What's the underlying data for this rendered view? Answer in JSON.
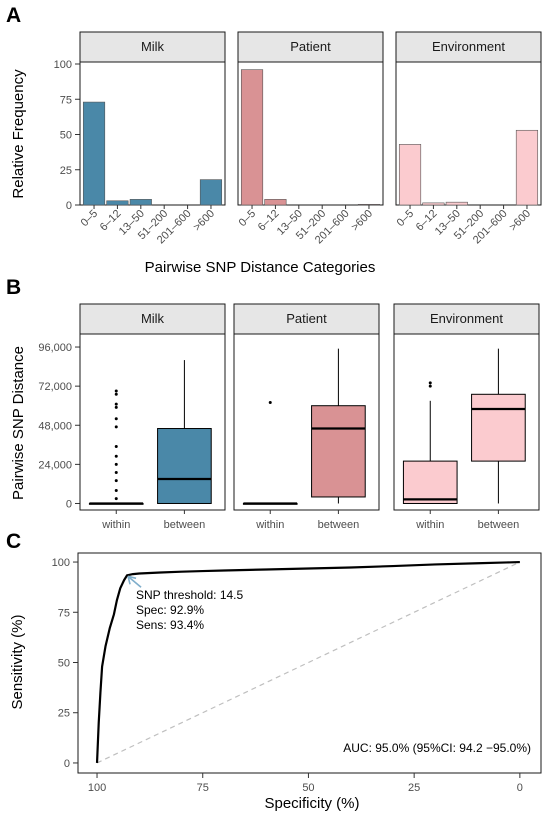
{
  "panels": {
    "A": "A",
    "B": "B",
    "C": "C"
  },
  "chart_data": [
    {
      "type": "bar",
      "panel": "A",
      "facets": [
        "Milk",
        "Patient",
        "Environment"
      ],
      "categories": [
        "0–5",
        "6–12",
        "13–50",
        "51–200",
        "201–600",
        ">600"
      ],
      "series": [
        {
          "name": "Milk",
          "values": [
            73,
            3,
            4,
            0,
            0,
            18
          ],
          "color": "#4a88a8"
        },
        {
          "name": "Patient",
          "values": [
            96,
            4,
            0,
            0,
            0,
            0.5
          ],
          "color": "#d99294"
        },
        {
          "name": "Environment",
          "values": [
            43,
            1.5,
            2,
            0,
            0,
            53
          ],
          "color": "#fbcbcf"
        }
      ],
      "xlabel": "Pairwise SNP Distance Categories",
      "ylabel": "Relative Frequency",
      "ylim": [
        0,
        100
      ],
      "yticks": [
        0,
        25,
        50,
        75,
        100
      ],
      "ytick_labels": [
        "0",
        "25",
        "50",
        "75",
        "100"
      ],
      "grid": false
    },
    {
      "type": "box",
      "panel": "B",
      "facets": [
        "Milk",
        "Patient",
        "Environment"
      ],
      "categories": [
        "within",
        "between"
      ],
      "series": [
        {
          "name": "Milk",
          "color": "#4a88a8",
          "boxes": [
            {
              "category": "within",
              "min": 0,
              "q1": 0,
              "median": 0,
              "q3": 0,
              "max": 0,
              "outliers": [
                69000,
                67000,
                61000,
                59000,
                52000,
                47000,
                35000,
                29000,
                24000,
                19000,
                14000,
                8000,
                3000
              ]
            },
            {
              "category": "between",
              "min": 0,
              "q1": 0,
              "median": 15000,
              "q3": 46000,
              "max": 88000,
              "outliers": []
            }
          ]
        },
        {
          "name": "Patient",
          "color": "#d99294",
          "boxes": [
            {
              "category": "within",
              "min": 0,
              "q1": 0,
              "median": 0,
              "q3": 0,
              "max": 0,
              "outliers": [
                62000
              ]
            },
            {
              "category": "between",
              "min": 0,
              "q1": 4000,
              "median": 46000,
              "q3": 60000,
              "max": 95000,
              "outliers": []
            }
          ]
        },
        {
          "name": "Environment",
          "color": "#fbcbcf",
          "boxes": [
            {
              "category": "within",
              "min": 0,
              "q1": 0,
              "median": 2500,
              "q3": 26000,
              "max": 63000,
              "outliers": [
                72000,
                74000
              ]
            },
            {
              "category": "between",
              "min": 0,
              "q1": 26000,
              "median": 58000,
              "q3": 67000,
              "max": 95000,
              "outliers": []
            }
          ]
        }
      ],
      "ylabel": "Pairwise SNP Distance",
      "ylim": [
        -4000,
        104000
      ],
      "yticks": [
        0,
        24000,
        48000,
        72000,
        96000
      ],
      "ytick_labels": [
        "0",
        "24,000",
        "48,000",
        "72,000",
        "96,000"
      ],
      "grid": false
    },
    {
      "type": "line",
      "panel": "C",
      "series": [
        {
          "name": "ROC",
          "color": "#000000",
          "points": [
            [
              100,
              0
            ],
            [
              99.6,
              20
            ],
            [
              99.2,
              35
            ],
            [
              98.8,
              48
            ],
            [
              98,
              58
            ],
            [
              97,
              67
            ],
            [
              96,
              74
            ],
            [
              95.3,
              81
            ],
            [
              94.5,
              87
            ],
            [
              93.6,
              91
            ],
            [
              92.9,
              93.4
            ],
            [
              91.5,
              94
            ],
            [
              90,
              94.3
            ],
            [
              85,
              94.8
            ],
            [
              80,
              95.2
            ],
            [
              75,
              95.5
            ],
            [
              70,
              95.8
            ],
            [
              60,
              96.3
            ],
            [
              50,
              96.8
            ],
            [
              40,
              97.3
            ],
            [
              30,
              98
            ],
            [
              20,
              98.8
            ],
            [
              10,
              99.4
            ],
            [
              3,
              99.8
            ],
            [
              0,
              100
            ]
          ]
        },
        {
          "name": "reference",
          "color": "#bfbfbf",
          "points": [
            [
              100,
              0
            ],
            [
              0,
              100
            ]
          ]
        }
      ],
      "xlabel": "Specificity (%)",
      "ylabel": "Sensitivity (%)",
      "xlim": [
        104.5,
        -5
      ],
      "ylim": [
        -5,
        104.5
      ],
      "xticks": [
        100,
        75,
        50,
        25,
        0
      ],
      "xtick_labels": [
        "100",
        "75",
        "50",
        "25",
        "0"
      ],
      "yticks": [
        0,
        25,
        50,
        75,
        100
      ],
      "ytick_labels": [
        "0",
        "25",
        "50",
        "75",
        "100"
      ],
      "annotations": {
        "threshold_point": [
          92.9,
          93.4
        ],
        "lines": [
          "SNP threshold: 14.5",
          "Spec: 92.9%",
          "Sens: 93.4%"
        ],
        "arrow_color": "#7faecb",
        "auc": "AUC: 95.0% (95%CI: 94.2 −95.0%)"
      },
      "grid": false
    }
  ]
}
